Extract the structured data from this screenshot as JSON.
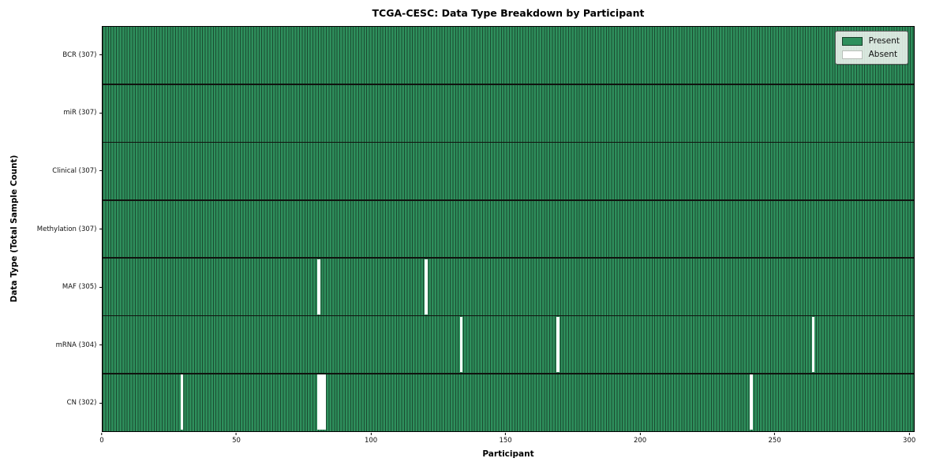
{
  "chart_data": {
    "type": "heatmap",
    "title": "TCGA-CESC: Data Type Breakdown by Participant",
    "xlabel": "Participant",
    "ylabel": "Data Type (Total Sample Count)",
    "n_participants": 307,
    "x_axis_max": 302,
    "x_ticks": [
      0,
      50,
      100,
      150,
      200,
      250,
      300
    ],
    "grid": false,
    "legend_position": "upper right",
    "legend": [
      {
        "label": "Present",
        "color": "#2e8f5c"
      },
      {
        "label": "Absent",
        "color": "#ffffff"
      }
    ],
    "colors": {
      "present_fill": "#2e8f5c",
      "present_edge": "#1b4b31",
      "absent_fill": "#ffffff",
      "row_separator": "#10130f"
    },
    "rows": [
      {
        "label": "BCR (307)",
        "data_type": "BCR",
        "present_count": 307,
        "absent_participants": []
      },
      {
        "label": "miR (307)",
        "data_type": "miR",
        "present_count": 307,
        "absent_participants": []
      },
      {
        "label": "Clinical (307)",
        "data_type": "Clinical",
        "present_count": 307,
        "absent_participants": []
      },
      {
        "label": "Methylation (307)",
        "data_type": "Methylation",
        "present_count": 307,
        "absent_participants": []
      },
      {
        "label": "MAF (305)",
        "data_type": "MAF",
        "present_count": 305,
        "absent_participants": [
          80,
          120
        ]
      },
      {
        "label": "mRNA (304)",
        "data_type": "mRNA",
        "present_count": 304,
        "absent_participants": [
          133,
          169,
          264
        ]
      },
      {
        "label": "CN (302)",
        "data_type": "CN",
        "present_count": 302,
        "absent_participants": [
          29,
          80,
          81,
          82,
          241
        ]
      }
    ]
  }
}
